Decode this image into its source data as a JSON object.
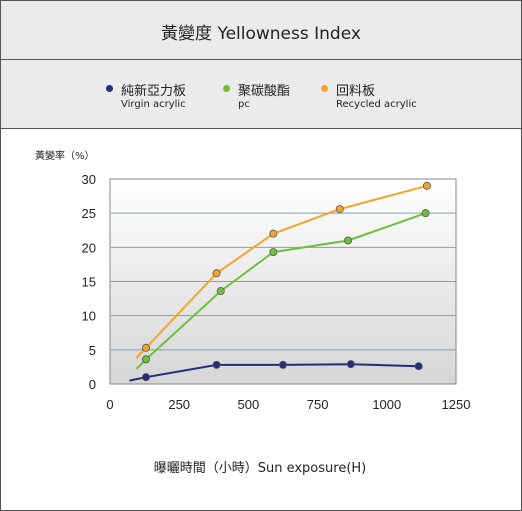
{
  "header": {
    "title": "黃變度 Yellowness  Index"
  },
  "legend": [
    {
      "zh": "純新亞力板",
      "en": "Virgin acrylic",
      "color": "#1f2f7a"
    },
    {
      "zh": "聚碳酸酯",
      "en": "pc",
      "color": "#6fbf3a"
    },
    {
      "zh": "回料板",
      "en": "Recycled acrylic",
      "color": "#f2a52b"
    }
  ],
  "chart_data": {
    "type": "line",
    "ylabel": "黃變率（%）",
    "xlabel": "曝曬時間（小時）Sun exposure(H)",
    "xlim": [
      0,
      1250
    ],
    "ylim": [
      0,
      30
    ],
    "xticks": [
      "0",
      "250",
      "500",
      "750",
      "1000",
      "1250"
    ],
    "yticks": [
      "0",
      "5",
      "10",
      "15",
      "20",
      "25",
      "30"
    ],
    "series": [
      {
        "name": "純新亞力板 Virgin acrylic",
        "color": "#1f2f7a",
        "line_start": [
          70,
          0.5
        ],
        "x": [
          130,
          385,
          625,
          870,
          1115
        ],
        "y": [
          1,
          2.8,
          2.8,
          2.9,
          2.6
        ]
      },
      {
        "name": "聚碳酸酯 pc",
        "color": "#6fbf3a",
        "line_start": [
          95,
          2.2
        ],
        "x": [
          130,
          400,
          590,
          860,
          1140
        ],
        "y": [
          3.6,
          13.6,
          19.3,
          21,
          25
        ]
      },
      {
        "name": "回料板 Recycled acrylic",
        "color": "#f2a52b",
        "line_start": [
          95,
          3.8
        ],
        "x": [
          130,
          385,
          590,
          830,
          1145
        ],
        "y": [
          5.3,
          16.2,
          22,
          25.6,
          29
        ]
      }
    ]
  }
}
